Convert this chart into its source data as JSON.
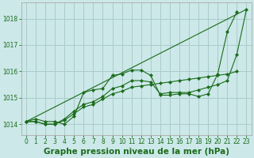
{
  "background_color": "#cce8e8",
  "grid_color": "#aacccc",
  "line_color": "#1a6b1a",
  "marker_color": "#1a6b1a",
  "xlabel": "Graphe pression niveau de la mer (hPa)",
  "xlabel_fontsize": 7.5,
  "ylabel_ticks": [
    1014,
    1015,
    1016,
    1017,
    1018
  ],
  "xlim": [
    -0.5,
    23.5
  ],
  "ylim": [
    1013.6,
    1018.6
  ],
  "xticks": [
    0,
    1,
    2,
    3,
    4,
    5,
    6,
    7,
    8,
    9,
    10,
    11,
    12,
    13,
    14,
    15,
    16,
    17,
    18,
    19,
    20,
    21,
    22,
    23
  ],
  "series": [
    [
      1014.1,
      1014.2,
      1014.1,
      1014.1,
      1014.0,
      1014.3,
      1015.2,
      1015.3,
      1015.35,
      1015.85,
      1015.9,
      1016.05,
      1016.05,
      1015.85,
      1015.1,
      1015.1,
      1015.15,
      1015.15,
      1015.05,
      1015.15,
      1015.9,
      1017.5,
      1018.25,
      null
    ],
    [
      1014.1,
      1014.1,
      1014.0,
      1014.0,
      1014.15,
      1014.4,
      1014.65,
      1014.75,
      1014.95,
      1015.15,
      1015.25,
      1015.4,
      1015.45,
      1015.5,
      1015.55,
      1015.6,
      1015.65,
      1015.7,
      1015.75,
      1015.8,
      1015.85,
      1015.9,
      1016.0,
      null
    ],
    [
      1014.1,
      1014.1,
      1014.0,
      1014.0,
      1014.2,
      1014.5,
      1014.75,
      1014.85,
      1015.05,
      1015.35,
      1015.45,
      1015.65,
      1015.65,
      1015.6,
      1015.15,
      1015.2,
      1015.2,
      1015.2,
      1015.3,
      1015.4,
      1015.5,
      1015.65,
      1016.65,
      1018.35
    ],
    [
      1014.1,
      null,
      null,
      null,
      null,
      null,
      null,
      null,
      null,
      null,
      null,
      null,
      null,
      null,
      null,
      null,
      null,
      null,
      null,
      null,
      null,
      null,
      null,
      1018.35
    ]
  ]
}
